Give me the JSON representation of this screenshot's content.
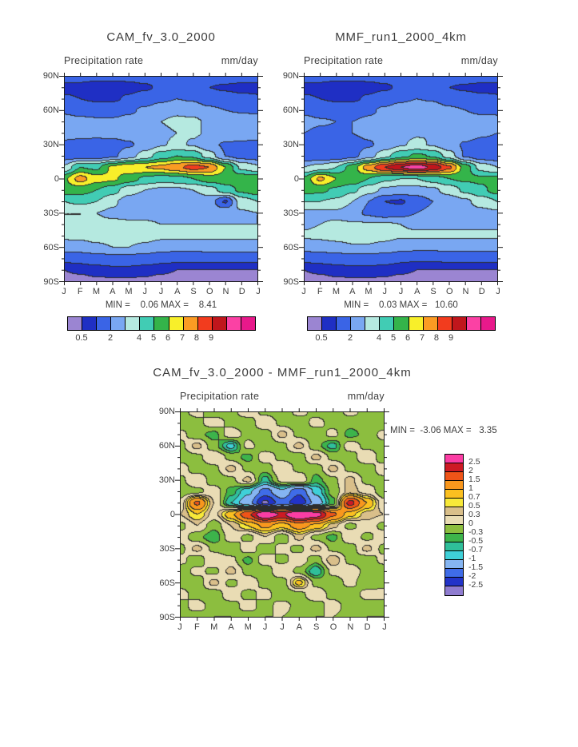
{
  "page": {
    "background": "#ffffff",
    "text_color": "#3d3d3d"
  },
  "months": [
    "J",
    "F",
    "M",
    "A",
    "M",
    "J",
    "J",
    "A",
    "S",
    "O",
    "N",
    "D",
    "J"
  ],
  "lat_labels": [
    "90N",
    "60N",
    "30N",
    "0",
    "30S",
    "60S",
    "90S"
  ],
  "scales": {
    "precip": {
      "levels": [
        0.5,
        1,
        2,
        3,
        4,
        5,
        6,
        7,
        8,
        9,
        10,
        12
      ],
      "colors": [
        "#9b85d2",
        "#1f2fc4",
        "#3a64e6",
        "#79a7f2",
        "#b5e9e0",
        "#41ccb4",
        "#34b44a",
        "#f8ef2a",
        "#fb9b23",
        "#f23c1e",
        "#c0161c",
        "#fb41a4",
        "#e8198b"
      ],
      "bar_labels": [
        {
          "text": "0.5",
          "edge": 1
        },
        {
          "text": "2",
          "edge": 3
        },
        {
          "text": "4",
          "edge": 5
        },
        {
          "text": "5",
          "edge": 6
        },
        {
          "text": "6",
          "edge": 7
        },
        {
          "text": "7",
          "edge": 8
        },
        {
          "text": "8",
          "edge": 9
        },
        {
          "text": "9",
          "edge": 10
        }
      ]
    },
    "diff": {
      "levels": [
        -2.5,
        -2,
        -1.5,
        -1,
        -0.7,
        -0.5,
        -0.3,
        0,
        0.3,
        0.5,
        0.7,
        1,
        1.5,
        2,
        2.5
      ],
      "colors": [
        "#8f7cd0",
        "#2233c8",
        "#3f6ce8",
        "#85b5f2",
        "#3fd0d8",
        "#2fbf9a",
        "#3cb44b",
        "#8cbe3f",
        "#e9dcb4",
        "#d9bf8a",
        "#f8e939",
        "#fbc020",
        "#f9971d",
        "#ef5418",
        "#cd1a24",
        "#fb3da4"
      ],
      "bar_labels": [
        "2.5",
        "2",
        "1.5",
        "1",
        "0.7",
        "0.5",
        "0.3",
        "0",
        "-0.3",
        "-0.5",
        "-0.7",
        "-1",
        "-1.5",
        "-2",
        "-2.5"
      ]
    }
  },
  "chart_data": [
    {
      "id": "cam",
      "type": "heatmap",
      "title": "CAM_fv_3.0_2000",
      "subtitle": "Precipitation rate",
      "units": "mm/day",
      "minmax": "MIN =    0.06 MAX =    8.41",
      "min": 0.06,
      "max": 8.41,
      "scale": "precip",
      "x_axis": "months Jan-Jan",
      "y_axis": "latitude 90N to 90S",
      "lats": [
        90,
        80,
        70,
        60,
        50,
        40,
        30,
        20,
        10,
        0,
        -10,
        -20,
        -30,
        -40,
        -50,
        -60,
        -70,
        -80,
        -90
      ],
      "values": [
        [
          1.4,
          1.3,
          1.2,
          1.2,
          1.2,
          1.3,
          1.5,
          1.6,
          1.5,
          1.4,
          1.4,
          1.4,
          1.4
        ],
        [
          0.8,
          0.8,
          0.7,
          0.7,
          0.8,
          0.9,
          1.1,
          1.3,
          1.2,
          1.0,
          0.9,
          0.8,
          0.8
        ],
        [
          1.1,
          1.0,
          0.9,
          0.9,
          1.1,
          1.4,
          1.8,
          2.0,
          1.9,
          1.5,
          1.3,
          1.2,
          1.1
        ],
        [
          1.8,
          1.6,
          1.5,
          1.5,
          1.8,
          2.2,
          2.6,
          2.8,
          2.6,
          2.2,
          2.0,
          1.9,
          1.8
        ],
        [
          2.5,
          2.3,
          2.2,
          2.2,
          2.4,
          2.6,
          3.0,
          3.2,
          3.2,
          2.8,
          2.7,
          2.6,
          2.5
        ],
        [
          2.6,
          2.4,
          2.3,
          2.3,
          2.4,
          2.6,
          2.8,
          3.0,
          3.1,
          2.9,
          2.8,
          2.7,
          2.6
        ],
        [
          1.7,
          1.6,
          1.6,
          1.7,
          1.9,
          2.3,
          2.9,
          3.2,
          2.9,
          2.2,
          1.9,
          1.8,
          1.7
        ],
        [
          1.5,
          1.4,
          1.5,
          1.8,
          2.5,
          3.5,
          4.5,
          5.0,
          4.8,
          3.5,
          2.0,
          1.6,
          1.5
        ],
        [
          3.2,
          5.0,
          4.8,
          6.2,
          6.8,
          7.0,
          7.2,
          7.8,
          8.4,
          8.0,
          6.0,
          3.8,
          3.2
        ],
        [
          5.8,
          7.4,
          6.4,
          6.2,
          5.5,
          4.8,
          4.5,
          4.6,
          5.0,
          5.5,
          5.6,
          5.6,
          5.8
        ],
        [
          5.6,
          5.4,
          5.0,
          4.4,
          3.4,
          3.0,
          2.8,
          2.8,
          3.0,
          3.5,
          4.5,
          5.2,
          5.6
        ],
        [
          4.0,
          4.2,
          4.0,
          3.2,
          2.5,
          2.2,
          2.0,
          2.0,
          2.2,
          2.5,
          0.9,
          3.5,
          4.0
        ],
        [
          3.0,
          3.0,
          3.0,
          2.8,
          2.6,
          2.5,
          2.4,
          2.4,
          2.5,
          2.6,
          2.8,
          2.9,
          3.0
        ],
        [
          3.0,
          3.0,
          3.2,
          3.2,
          3.2,
          3.2,
          3.0,
          3.0,
          3.0,
          3.0,
          3.0,
          3.0,
          3.0
        ],
        [
          3.2,
          3.2,
          3.4,
          3.5,
          3.5,
          3.4,
          3.2,
          3.2,
          3.2,
          3.2,
          3.2,
          3.2,
          3.2
        ],
        [
          2.5,
          2.6,
          2.8,
          3.0,
          3.0,
          2.8,
          2.5,
          2.4,
          2.4,
          2.5,
          2.5,
          2.5,
          2.5
        ],
        [
          1.2,
          1.3,
          1.5,
          1.6,
          1.6,
          1.5,
          1.3,
          1.2,
          1.2,
          1.2,
          1.2,
          1.2,
          1.2
        ],
        [
          0.5,
          0.6,
          0.7,
          0.8,
          0.8,
          0.7,
          0.6,
          0.5,
          0.5,
          0.5,
          0.5,
          0.5,
          0.5
        ],
        [
          0.3,
          0.3,
          0.4,
          0.4,
          0.4,
          0.4,
          0.3,
          0.3,
          0.3,
          0.3,
          0.3,
          0.3,
          0.3
        ]
      ]
    },
    {
      "id": "mmf",
      "type": "heatmap",
      "title": "MMF_run1_2000_4km",
      "subtitle": "Precipitation rate",
      "units": "mm/day",
      "minmax": "MIN =    0.03 MAX =   10.60",
      "min": 0.03,
      "max": 10.6,
      "scale": "precip",
      "x_axis": "months Jan-Jan",
      "y_axis": "latitude 90N to 90S",
      "lats": [
        90,
        80,
        70,
        60,
        50,
        40,
        30,
        20,
        10,
        0,
        -10,
        -20,
        -30,
        -40,
        -50,
        -60,
        -70,
        -80,
        -90
      ],
      "values": [
        [
          1.4,
          1.3,
          1.2,
          1.2,
          1.2,
          1.3,
          1.5,
          1.6,
          1.5,
          1.4,
          1.4,
          1.4,
          1.4
        ],
        [
          0.8,
          0.8,
          0.7,
          0.7,
          0.8,
          0.9,
          1.1,
          1.3,
          1.2,
          1.0,
          0.9,
          0.8,
          0.8
        ],
        [
          1.1,
          1.0,
          0.9,
          0.9,
          1.1,
          1.4,
          1.8,
          2.0,
          1.9,
          1.5,
          1.3,
          1.2,
          1.1
        ],
        [
          1.8,
          1.6,
          1.5,
          1.5,
          1.8,
          2.2,
          2.6,
          2.8,
          2.6,
          2.2,
          2.0,
          1.8,
          1.8
        ],
        [
          2.3,
          2.1,
          2.0,
          2.0,
          2.2,
          2.5,
          2.8,
          3.0,
          3.0,
          2.7,
          2.5,
          2.4,
          2.3
        ],
        [
          2.0,
          1.8,
          1.8,
          2.0,
          2.2,
          2.4,
          2.7,
          2.9,
          3.0,
          2.8,
          2.6,
          2.2,
          2.0
        ],
        [
          1.4,
          1.3,
          1.4,
          1.6,
          1.9,
          2.3,
          2.9,
          3.2,
          2.9,
          2.3,
          1.9,
          1.6,
          1.4
        ],
        [
          1.3,
          1.2,
          1.3,
          1.7,
          2.5,
          3.7,
          4.7,
          5.2,
          4.9,
          3.5,
          1.9,
          1.4,
          1.3
        ],
        [
          3.0,
          3.4,
          4.0,
          5.5,
          7.5,
          9.0,
          10.0,
          10.6,
          9.8,
          8.2,
          5.5,
          3.6,
          3.0
        ],
        [
          5.2,
          7.2,
          6.0,
          5.8,
          5.0,
          4.2,
          4.0,
          4.0,
          4.4,
          5.0,
          5.2,
          5.2,
          5.2
        ],
        [
          5.4,
          5.2,
          4.8,
          4.2,
          3.4,
          2.8,
          2.6,
          2.6,
          2.8,
          3.4,
          4.2,
          4.8,
          5.4
        ],
        [
          4.0,
          4.0,
          3.8,
          3.0,
          2.0,
          1.0,
          0.9,
          1.4,
          2.0,
          2.4,
          2.8,
          3.4,
          4.0
        ],
        [
          2.8,
          2.8,
          2.8,
          2.4,
          1.8,
          1.4,
          1.6,
          2.0,
          2.3,
          2.5,
          2.6,
          2.7,
          2.8
        ],
        [
          2.9,
          3.0,
          3.1,
          3.1,
          3.1,
          3.1,
          3.0,
          2.9,
          2.9,
          2.9,
          2.9,
          2.9,
          2.9
        ],
        [
          3.1,
          3.2,
          3.3,
          3.4,
          3.4,
          3.3,
          3.1,
          3.1,
          3.1,
          3.1,
          3.1,
          3.1,
          3.1
        ],
        [
          2.4,
          2.5,
          2.7,
          2.9,
          2.9,
          2.7,
          2.4,
          2.3,
          2.3,
          2.4,
          2.4,
          2.4,
          2.4
        ],
        [
          1.2,
          1.3,
          1.4,
          1.5,
          1.5,
          1.4,
          1.2,
          1.1,
          1.1,
          1.2,
          1.2,
          1.2,
          1.2
        ],
        [
          0.5,
          0.6,
          0.7,
          0.8,
          0.8,
          0.7,
          0.6,
          0.5,
          0.5,
          0.5,
          0.5,
          0.5,
          0.5
        ],
        [
          0.3,
          0.3,
          0.4,
          0.4,
          0.4,
          0.4,
          0.3,
          0.3,
          0.3,
          0.3,
          0.3,
          0.3,
          0.3
        ]
      ]
    },
    {
      "id": "diff",
      "type": "heatmap",
      "title": "CAM_fv_3.0_2000 - MMF_run1_2000_4km",
      "subtitle": "Precipitation rate",
      "units": "mm/day",
      "minmax": "MIN =  -3.06 MAX =   3.35",
      "min": -3.06,
      "max": 3.35,
      "scale": "diff",
      "x_axis": "months Jan-Jan",
      "y_axis": "latitude 90N to 90S",
      "lats": [
        90,
        80,
        70,
        60,
        50,
        40,
        30,
        20,
        10,
        0,
        -10,
        -20,
        -30,
        -40,
        -50,
        -60,
        -70,
        -80,
        -90
      ],
      "values": [
        [
          -0.1,
          0.1,
          -0.2,
          -0.1,
          0.2,
          -0.1,
          -0.2,
          0.1,
          -0.1,
          -0.2,
          0.1,
          -0.1,
          -0.1
        ],
        [
          -0.2,
          -0.1,
          0.2,
          -0.1,
          -0.2,
          0.3,
          -0.1,
          -0.2,
          0.1,
          -0.1,
          -0.2,
          -0.1,
          -0.2
        ],
        [
          0.1,
          -0.2,
          -0.4,
          0.2,
          -0.1,
          -0.2,
          0.4,
          -0.1,
          -0.2,
          0.1,
          -0.4,
          -0.2,
          0.1
        ],
        [
          -0.1,
          0.4,
          -0.2,
          -0.8,
          0.1,
          -0.2,
          -0.1,
          0.4,
          -0.2,
          -0.6,
          0.2,
          -0.1,
          -0.1
        ],
        [
          -0.2,
          -0.1,
          0.3,
          -0.1,
          -0.4,
          0.2,
          -0.1,
          -0.2,
          0.4,
          -0.1,
          -0.2,
          0.3,
          -0.2
        ],
        [
          0.2,
          -0.2,
          -0.1,
          0.4,
          -0.1,
          -0.2,
          0.3,
          -0.1,
          -0.2,
          0.4,
          -0.1,
          -0.2,
          0.2
        ],
        [
          -0.1,
          0.3,
          -0.2,
          -0.1,
          0.4,
          -0.6,
          0.1,
          0.3,
          -0.4,
          -0.1,
          0.4,
          -0.1,
          -0.1
        ],
        [
          -0.2,
          -0.1,
          0.2,
          -0.4,
          -0.9,
          -1.7,
          -1.1,
          -1.9,
          -0.9,
          -0.2,
          0.4,
          0.2,
          -0.2
        ],
        [
          0.1,
          1.6,
          0.3,
          -0.7,
          -1.3,
          -2.6,
          -1.7,
          -2.4,
          -1.3,
          -0.4,
          2.2,
          1.0,
          0.1
        ],
        [
          0.3,
          0.7,
          0.2,
          0.9,
          1.9,
          3.1,
          2.4,
          3.3,
          2.8,
          1.6,
          0.8,
          0.4,
          0.3
        ],
        [
          -0.1,
          0.3,
          -0.2,
          0.3,
          0.7,
          1.1,
          0.8,
          1.2,
          0.9,
          0.4,
          -0.1,
          0.2,
          -0.1
        ],
        [
          0.2,
          -0.2,
          -0.5,
          0.2,
          -0.1,
          0.3,
          -0.2,
          0.4,
          -0.1,
          -0.4,
          0.3,
          -0.1,
          0.2
        ],
        [
          -0.1,
          0.4,
          -0.1,
          -0.3,
          0.2,
          -0.2,
          0.1,
          -0.1,
          0.4,
          -0.1,
          -0.2,
          0.4,
          -0.1
        ],
        [
          0.1,
          -0.2,
          0.3,
          0.1,
          -0.4,
          0.2,
          -0.1,
          0.2,
          -0.2,
          0.5,
          -0.1,
          -0.2,
          0.1
        ],
        [
          -0.2,
          0.1,
          -0.1,
          0.4,
          -0.1,
          -0.2,
          0.3,
          -0.1,
          -0.7,
          0.1,
          0.2,
          -0.1,
          -0.2
        ],
        [
          -0.1,
          -0.2,
          0.4,
          -0.1,
          0.2,
          -0.1,
          -0.2,
          0.8,
          -0.1,
          -0.2,
          0.1,
          -0.2,
          -0.1
        ],
        [
          0.1,
          -0.1,
          -0.2,
          0.2,
          -0.1,
          0.1,
          -0.2,
          -0.1,
          0.2,
          -0.1,
          -0.2,
          0.1,
          0.1
        ],
        [
          -0.1,
          0.1,
          -0.1,
          -0.1,
          0.1,
          -0.1,
          0.1,
          -0.1,
          -0.1,
          0.1,
          -0.1,
          -0.1,
          -0.1
        ],
        [
          0.0,
          -0.1,
          0.0,
          0.0,
          -0.1,
          0.0,
          0.0,
          -0.1,
          0.0,
          0.0,
          -0.1,
          0.0,
          0.0
        ]
      ]
    }
  ]
}
